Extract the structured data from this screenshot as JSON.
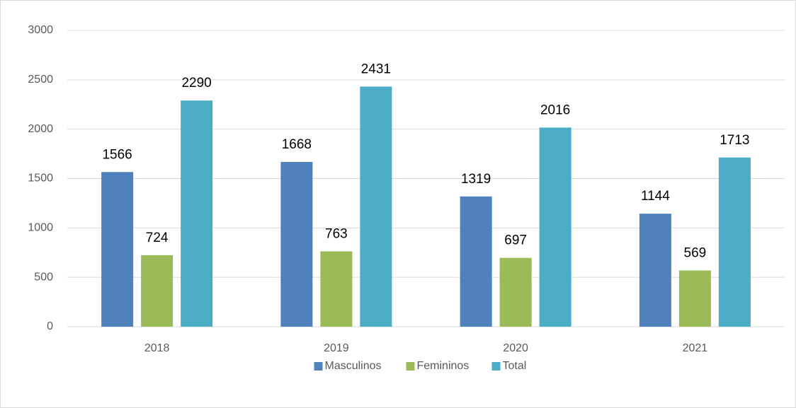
{
  "chart_data": {
    "type": "bar",
    "categories": [
      "2018",
      "2019",
      "2020",
      "2021"
    ],
    "series": [
      {
        "name": "Masculinos",
        "color": "#4f81bd",
        "values": [
          1566,
          1668,
          1319,
          1144
        ]
      },
      {
        "name": "Femininos",
        "color": "#9bbb59",
        "values": [
          724,
          763,
          697,
          569
        ]
      },
      {
        "name": "Total",
        "color": "#4bacc6",
        "values": [
          2290,
          2431,
          2016,
          1713
        ]
      }
    ],
    "ylim": [
      0,
      3000
    ],
    "yticks": [
      0,
      500,
      1000,
      1500,
      2000,
      2500,
      3000
    ],
    "grid": true,
    "legend": "bottom",
    "data_labels": true
  }
}
